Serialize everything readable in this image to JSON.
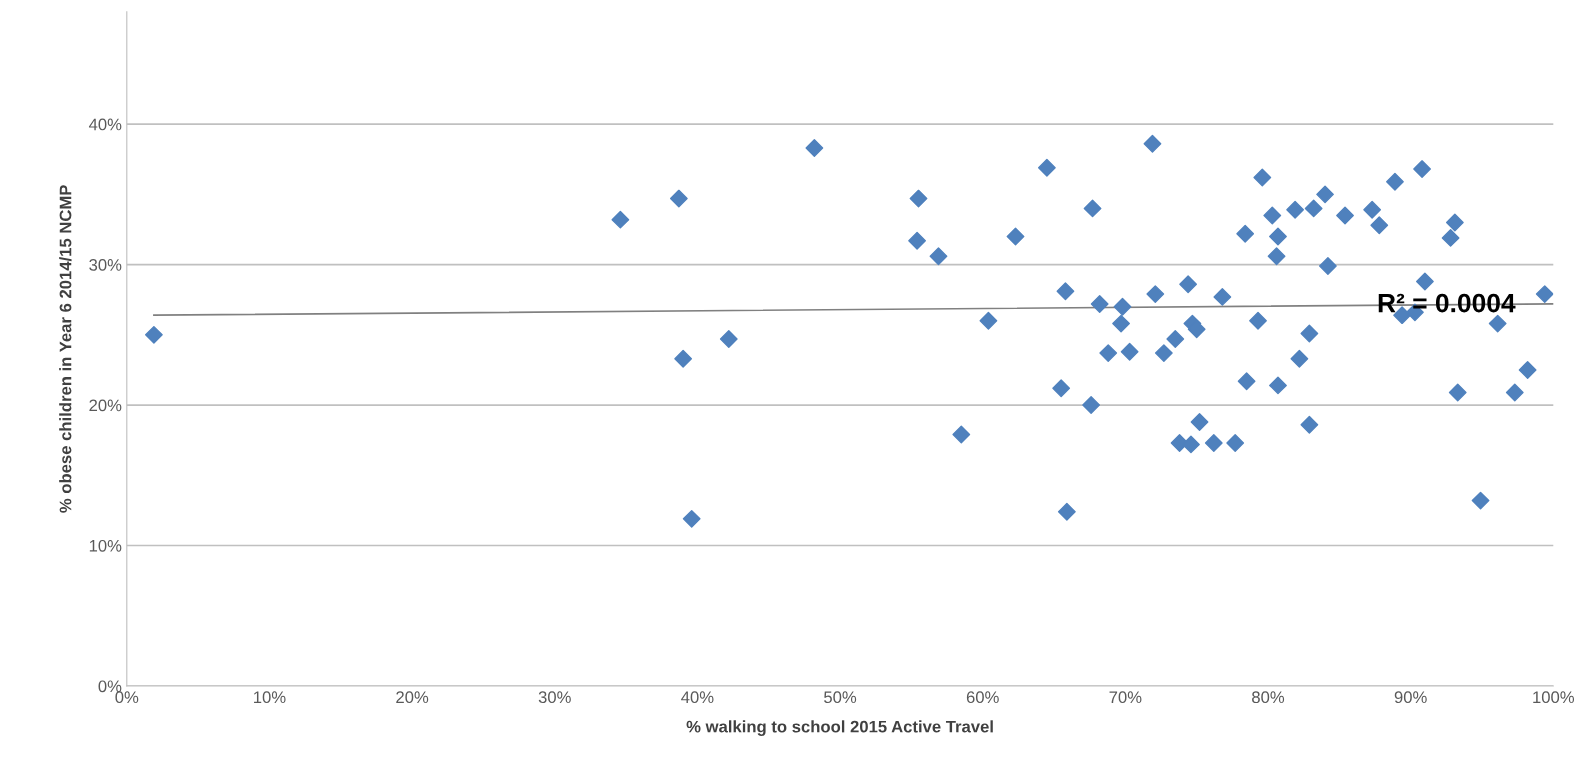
{
  "chart_data": {
    "type": "scatter",
    "xlabel": "% walking to school 2015 Active Travel",
    "ylabel": "% obese children in Year 6 2014/15 NCMP",
    "series": [
      {
        "color": "#4f81bd",
        "marker": "diamond",
        "x": [
          1.9,
          34.6,
          38.7,
          39.0,
          39.6,
          42.2,
          48.2,
          55.5,
          55.4,
          56.9,
          58.5,
          60.4,
          62.3,
          64.5,
          67.7,
          65.8,
          65.5,
          67.6,
          65.9,
          68.2,
          69.8,
          69.7,
          68.8,
          70.3,
          71.9,
          72.1,
          72.7,
          73.5,
          74.4,
          74.7,
          75.0,
          75.2,
          73.8,
          74.6,
          76.2,
          77.7,
          76.8,
          78.4,
          79.3,
          78.5,
          79.6,
          80.3,
          80.7,
          80.6,
          80.7,
          81.9,
          83.2,
          84.0,
          85.4,
          87.3,
          87.8,
          88.9,
          90.8,
          84.2,
          82.9,
          82.2,
          82.9,
          91.0,
          89.4,
          90.3,
          93.1,
          92.8,
          96.1,
          99.4,
          98.2,
          97.3,
          93.3,
          94.9
        ],
        "values": [
          25.0,
          33.2,
          34.7,
          23.3,
          11.9,
          24.7,
          38.3,
          34.7,
          31.7,
          30.6,
          17.9,
          26.0,
          32.0,
          36.9,
          34.0,
          28.1,
          21.2,
          20.0,
          12.4,
          27.2,
          27.0,
          25.8,
          23.7,
          23.8,
          38.6,
          27.9,
          23.7,
          24.7,
          28.6,
          25.8,
          25.4,
          18.8,
          17.3,
          17.2,
          17.3,
          17.3,
          27.7,
          32.2,
          26.0,
          21.7,
          36.2,
          33.5,
          32.0,
          30.6,
          21.4,
          33.9,
          34.0,
          35.0,
          33.5,
          33.9,
          32.8,
          35.9,
          36.8,
          29.9,
          25.1,
          23.3,
          18.6,
          28.8,
          26.4,
          26.6,
          33.0,
          31.9,
          25.8,
          27.9,
          22.5,
          20.9,
          20.9,
          13.2
        ]
      },
      {
        "type": "line",
        "color": "#808080",
        "marker": "none",
        "line_style": "solid",
        "x": [
          1.9,
          100
        ],
        "values": [
          26.4,
          27.2
        ]
      }
    ],
    "annotations": [
      {
        "text": "R² = 0.0004",
        "x": 92.5,
        "y": 27.1
      }
    ],
    "xlim": [
      0,
      100
    ],
    "ylim": [
      0,
      48
    ],
    "xticks": [
      {
        "value": 0,
        "label": "0%"
      },
      {
        "value": 10,
        "label": "10%"
      },
      {
        "value": 20,
        "label": "20%"
      },
      {
        "value": 30,
        "label": "30%"
      },
      {
        "value": 40,
        "label": "40%"
      },
      {
        "value": 50,
        "label": "50%"
      },
      {
        "value": 60,
        "label": "60%"
      },
      {
        "value": 70,
        "label": "70%"
      },
      {
        "value": 80,
        "label": "80%"
      },
      {
        "value": 90,
        "label": "90%"
      },
      {
        "value": 100,
        "label": "100%"
      }
    ],
    "yticks": [
      {
        "value": 0,
        "label": "0%"
      },
      {
        "value": 10,
        "label": "10%"
      },
      {
        "value": 20,
        "label": "20%"
      },
      {
        "value": 30,
        "label": "30%"
      },
      {
        "value": 40,
        "label": "40%"
      }
    ],
    "grid": "y",
    "legend": false
  }
}
